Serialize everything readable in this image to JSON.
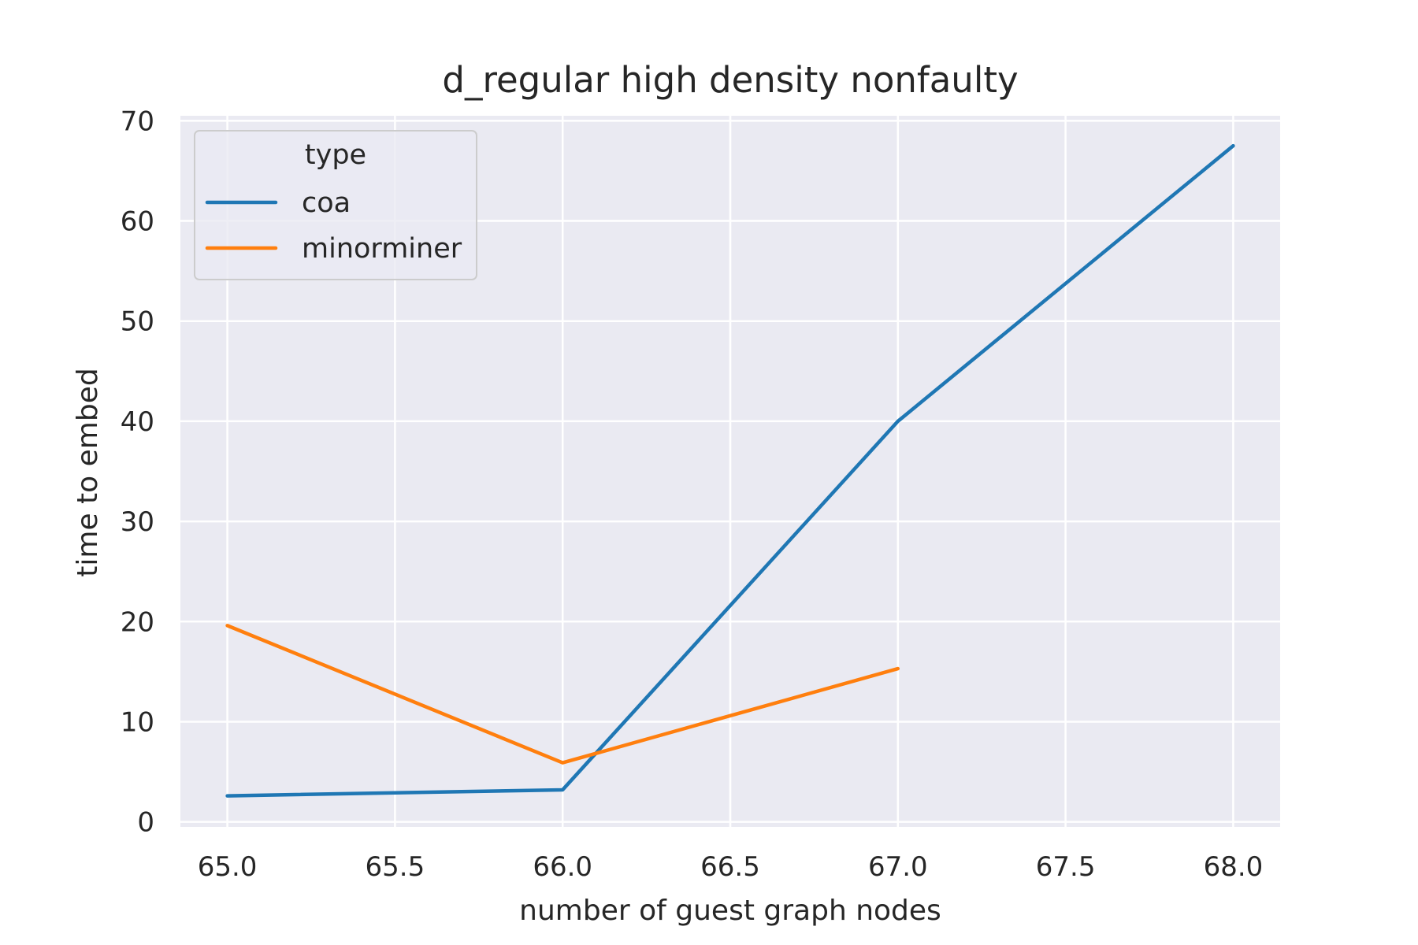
{
  "chart_data": {
    "type": "line",
    "title": "d_regular high density nonfaulty",
    "xlabel": "number of guest graph nodes",
    "ylabel": "time to embed",
    "xlim": [
      64.86,
      68.14
    ],
    "ylim": [
      -0.5,
      70.5
    ],
    "xticks": [
      65.0,
      65.5,
      66.0,
      66.5,
      67.0,
      67.5,
      68.0
    ],
    "xtick_labels": [
      "65.0",
      "65.5",
      "66.0",
      "66.5",
      "67.0",
      "67.5",
      "68.0"
    ],
    "yticks": [
      0,
      10,
      20,
      30,
      40,
      50,
      60,
      70
    ],
    "ytick_labels": [
      "0",
      "10",
      "20",
      "30",
      "40",
      "50",
      "60",
      "70"
    ],
    "grid": true,
    "background": "#eaeaf2",
    "grid_color": "#ffffff",
    "legend": {
      "title": "type",
      "placement": "top-left"
    },
    "series": [
      {
        "name": "coa",
        "color": "#1f77b4",
        "x": [
          65,
          66,
          67,
          68
        ],
        "y": [
          2.6,
          3.2,
          40.0,
          67.5
        ]
      },
      {
        "name": "minorminer",
        "color": "#ff7f0e",
        "x": [
          65,
          66,
          67
        ],
        "y": [
          19.6,
          5.9,
          15.3
        ]
      }
    ]
  }
}
